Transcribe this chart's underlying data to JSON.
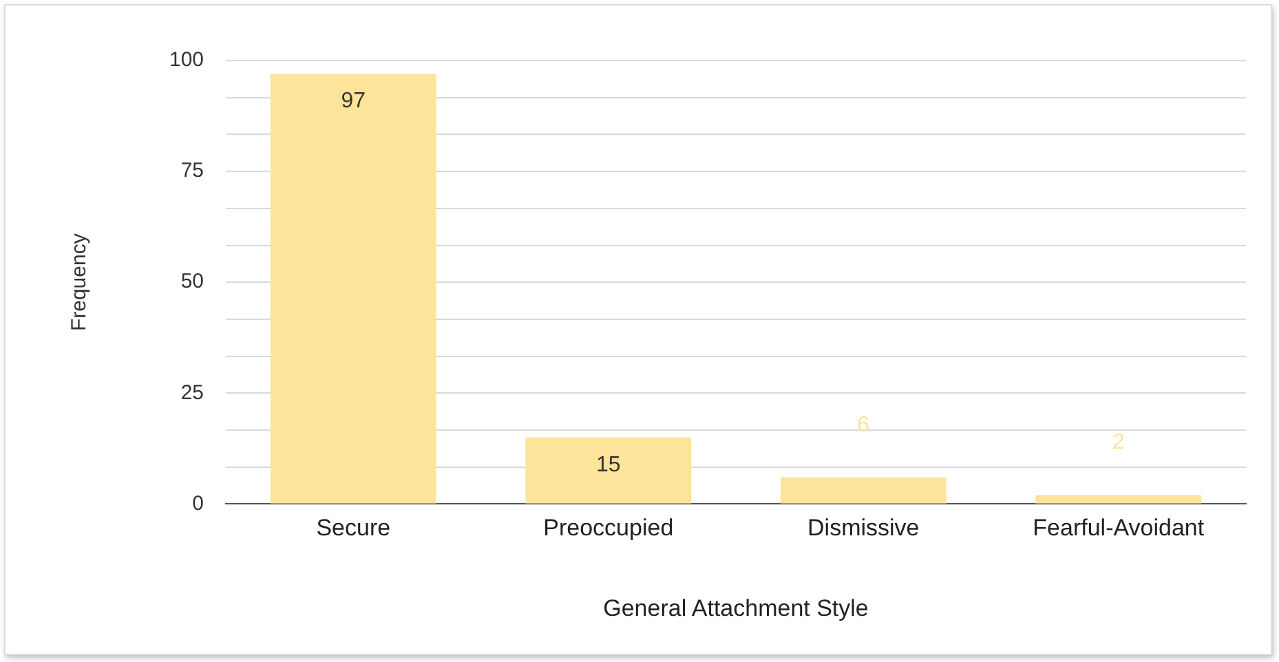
{
  "chart_data": {
    "type": "bar",
    "xlabel": "General Attachment Style",
    "ylabel": "Frequency",
    "categories": [
      "Secure",
      "Preoccupied",
      "Dismissive",
      "Fearful-Avoidant"
    ],
    "values": [
      97,
      15,
      6,
      2
    ],
    "color": "#fde49a",
    "ylim": [
      0,
      100
    ],
    "yticks": [
      0,
      {
        "value": 8.33,
        "label": null
      },
      {
        "value": 16.67,
        "label": null
      },
      25,
      {
        "value": 33.33,
        "label": null
      },
      {
        "value": 41.67,
        "label": null
      },
      50,
      {
        "value": 58.33,
        "label": null
      },
      {
        "value": 66.67,
        "label": null
      },
      75,
      {
        "value": 83.33,
        "label": null
      },
      {
        "value": 91.67,
        "label": null
      },
      100
    ],
    "grid": true,
    "data_labels": true,
    "legend": false
  }
}
